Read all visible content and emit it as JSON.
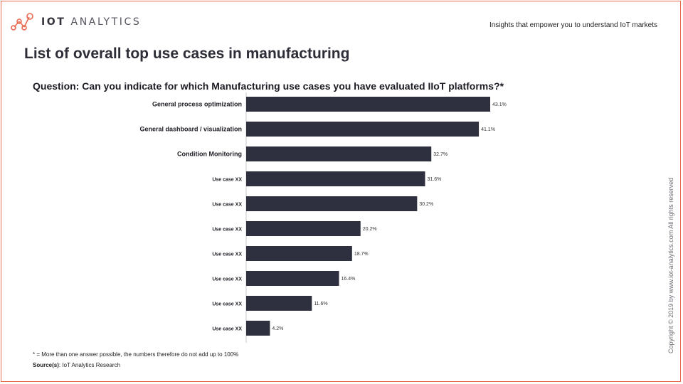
{
  "brand": {
    "name_bold": "IOT",
    "name_rest": "ANALYTICS",
    "tagline": "Insights that empower you to understand IoT markets",
    "accent_color": "#e8694f"
  },
  "slide": {
    "title": "List of overall top use cases in manufacturing",
    "question": "Question: Can you indicate for which Manufacturing use cases you have evaluated IIoT platforms?*",
    "footnote": "* = More than one answer possible, the numbers therefore do not add up to 100%",
    "source_label": "Source(s)",
    "source_text": ": IoT Analytics Research",
    "copyright": "Copyright © 2019 by www.iot-analytics.com All rights reserved"
  },
  "chart_data": {
    "type": "bar",
    "orientation": "horizontal",
    "categories": [
      "General process optimization",
      "General dashboard / visualization",
      "Condition Monitoring",
      "Use case XX",
      "Use case XX",
      "Use case XX",
      "Use case XX",
      "Use case XX",
      "Use case XX",
      "Use case XX"
    ],
    "values": [
      43.1,
      41.1,
      32.7,
      31.6,
      30.2,
      20.2,
      18.7,
      16.4,
      11.6,
      4.2
    ],
    "value_labels": [
      "43.1%",
      "41.1%",
      "32.7%",
      "31.6%",
      "30.2%",
      "20.2%",
      "18.7%",
      "16.4%",
      "11.6%",
      "4.2%"
    ],
    "title": "List of overall top use cases in manufacturing",
    "xlabel": "",
    "ylabel": "",
    "xlim": [
      0,
      43.1
    ],
    "grid": false,
    "legend": false,
    "bar_color": "#2f303f"
  }
}
